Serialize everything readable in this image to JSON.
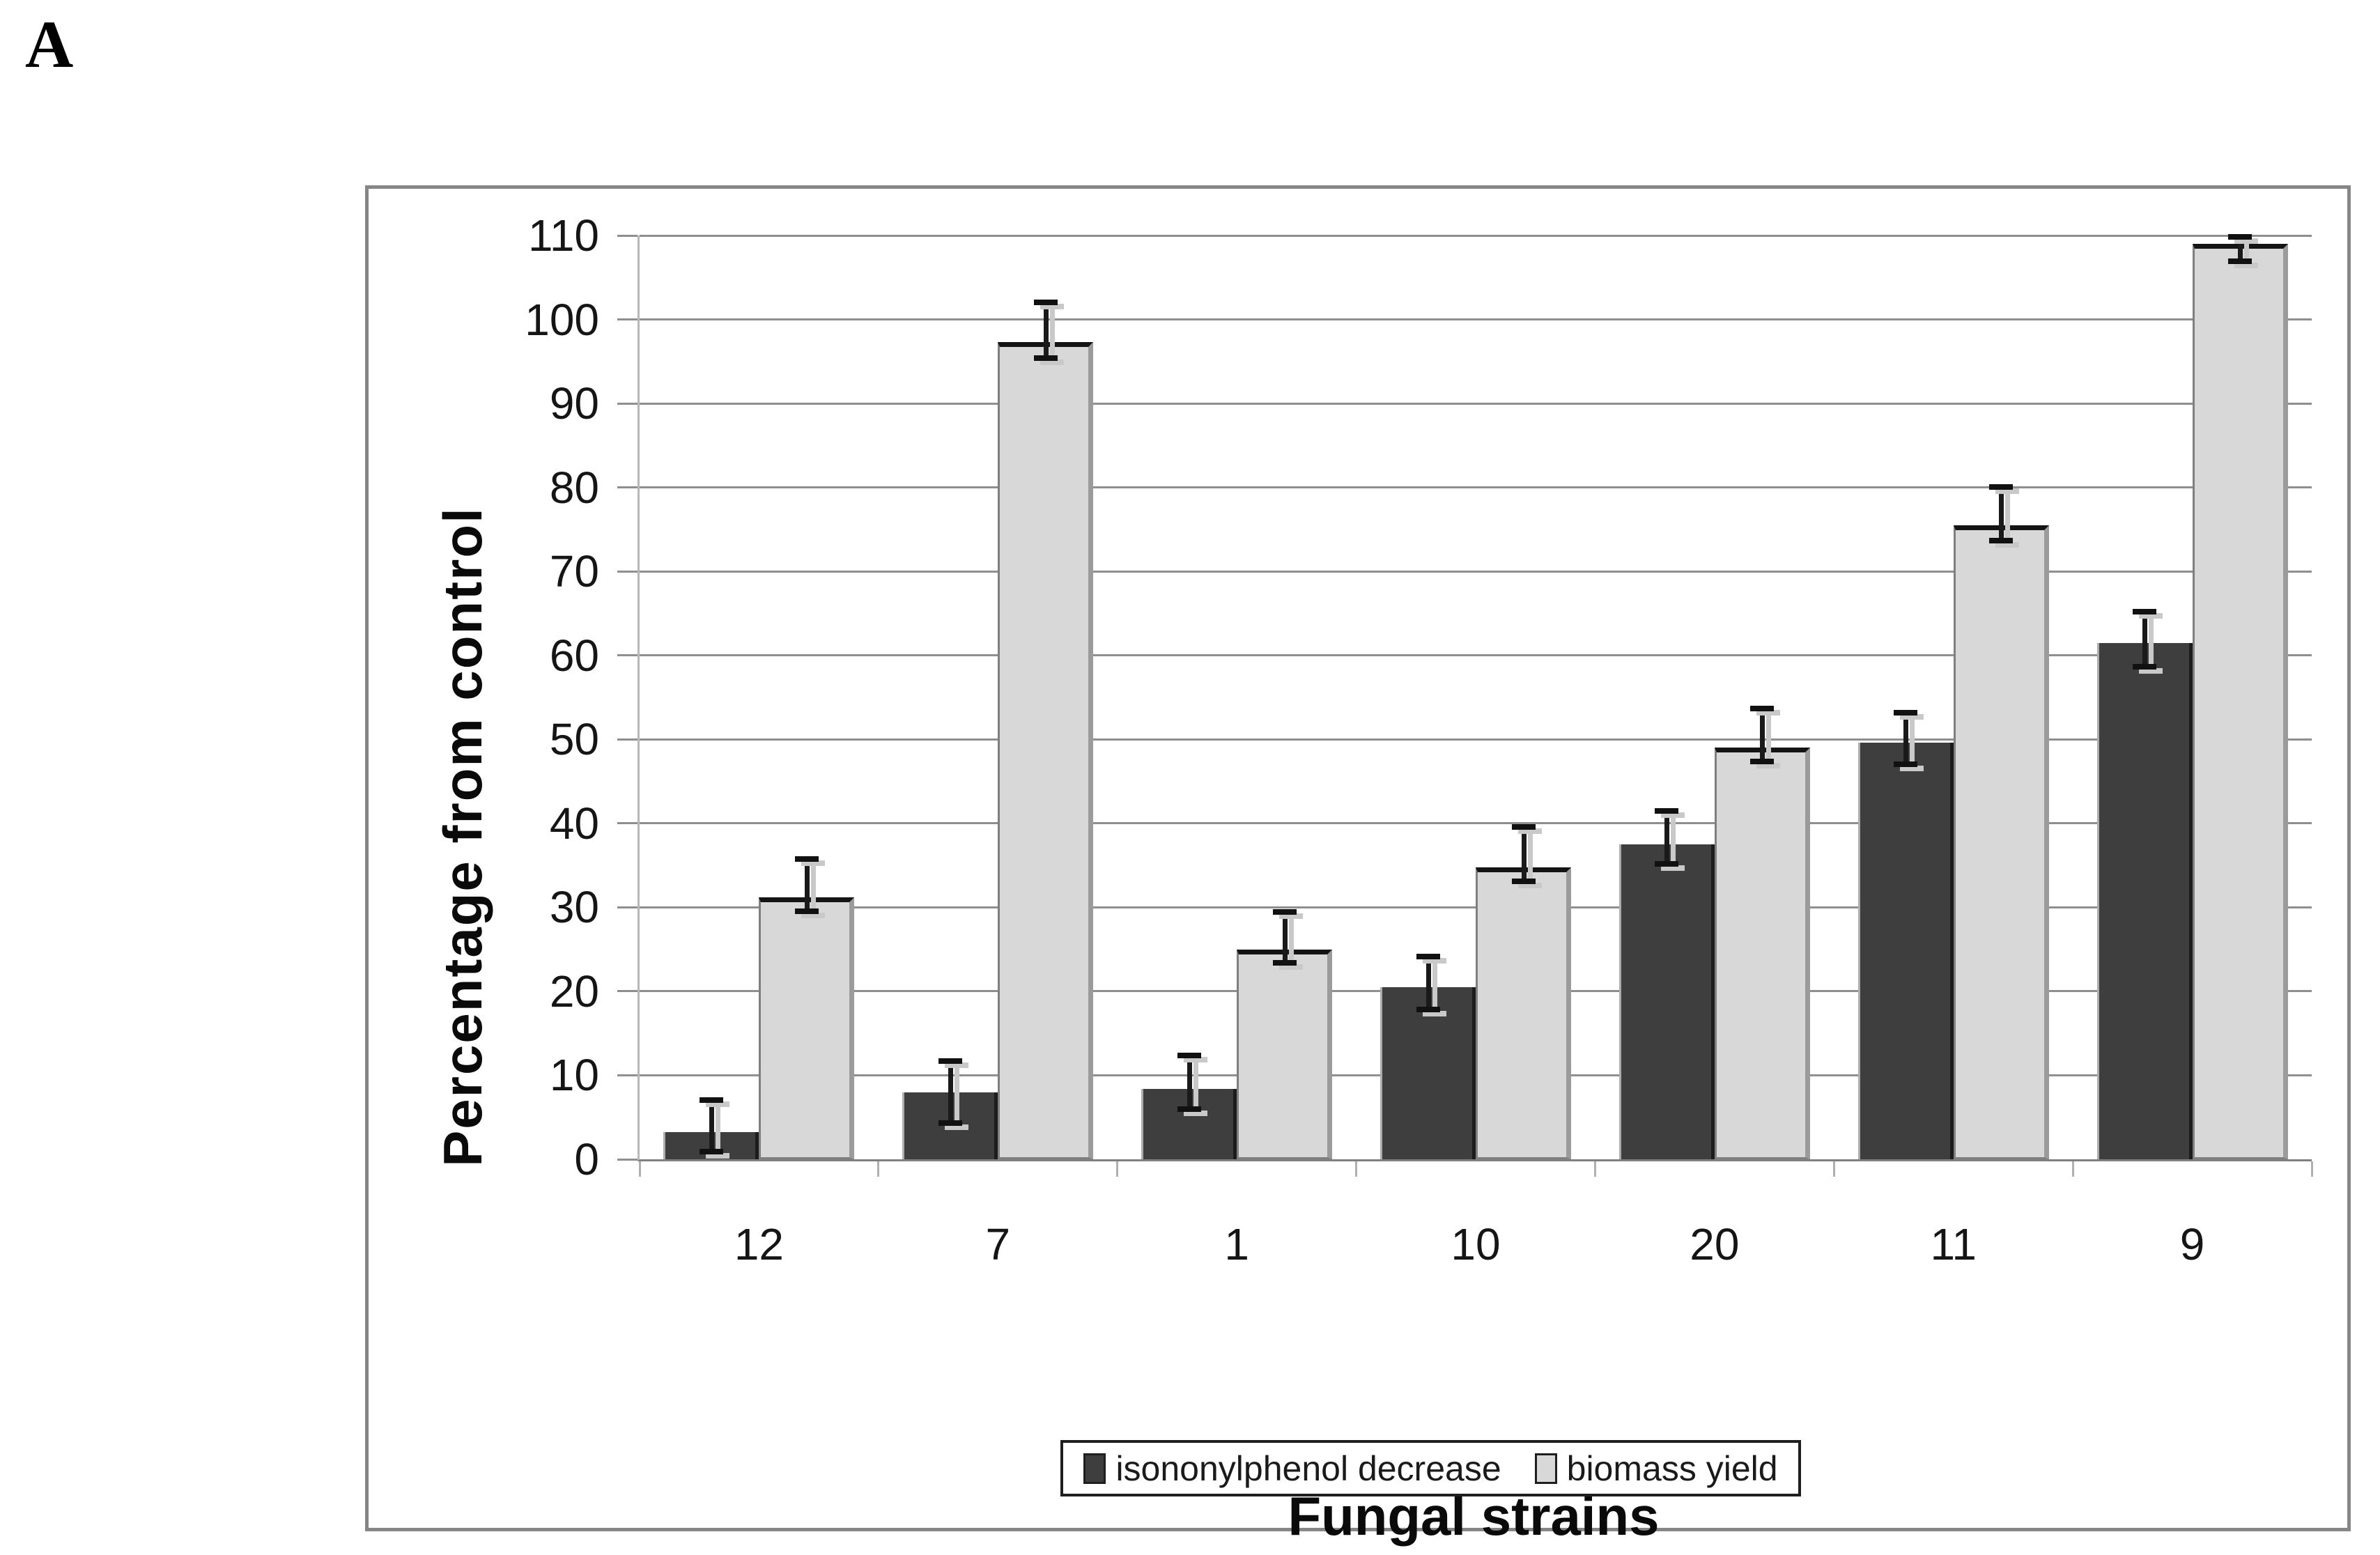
{
  "page": {
    "panel_label": "A"
  },
  "chart_data": {
    "type": "bar",
    "title": "",
    "xlabel": "Fungal strains",
    "ylabel": "Percentage from control",
    "categories": [
      "12",
      "7",
      "1",
      "10",
      "20",
      "11",
      "9"
    ],
    "series": [
      {
        "name": "isononylphenol decrease",
        "color": "#3e3e3e",
        "values": [
          3.2,
          8.0,
          8.4,
          20.5,
          37.5,
          49.6,
          61.5
        ],
        "err_lo": [
          0.6,
          4.0,
          5.6,
          17.5,
          34.8,
          46.7,
          58.3
        ],
        "err_hi": [
          7.4,
          12.0,
          12.7,
          24.5,
          41.8,
          53.5,
          65.5
        ]
      },
      {
        "name": "biomass yield",
        "color": "#d8d8d8",
        "values": [
          31.2,
          97.3,
          25.0,
          34.8,
          49.0,
          75.5,
          109.0
        ],
        "err_lo": [
          29.2,
          95.1,
          23.1,
          32.8,
          47.0,
          73.3,
          106.6
        ],
        "err_hi": [
          36.1,
          102.4,
          29.8,
          39.9,
          54.0,
          80.4,
          110.2
        ]
      }
    ],
    "ylim": [
      0,
      110
    ],
    "ytick_step": 10,
    "grid": true,
    "legend_position": "bottom-inside",
    "axis_color": "#808080",
    "grid_color": "#8f8f8f",
    "error_bar_color": "#1a1a1a"
  }
}
